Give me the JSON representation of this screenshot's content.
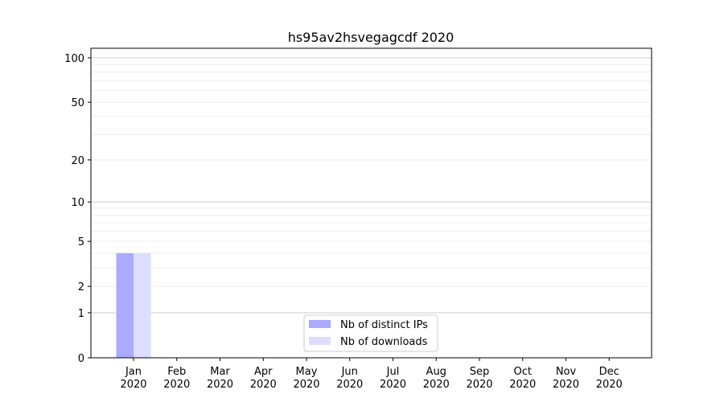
{
  "chart_data": {
    "type": "bar",
    "title": "hs95av2hsvegagcdf 2020",
    "xlabel": "",
    "ylabel": "",
    "categories": [
      "Jan\n2020",
      "Feb\n2020",
      "Mar\n2020",
      "Apr\n2020",
      "May\n2020",
      "Jun\n2020",
      "Jul\n2020",
      "Aug\n2020",
      "Sep\n2020",
      "Oct\n2020",
      "Nov\n2020",
      "Dec\n2020"
    ],
    "yscale": "log(y+1)",
    "yticks": [
      0,
      1,
      2,
      5,
      10,
      20,
      50,
      100
    ],
    "ylim": [
      0,
      116
    ],
    "grid": true,
    "legend_position": "bottom-center",
    "series": [
      {
        "name": "Nb of distinct IPs",
        "color": "#aaaaff",
        "values": [
          4,
          0,
          0,
          0,
          0,
          0,
          0,
          0,
          0,
          0,
          0,
          0
        ]
      },
      {
        "name": "Nb of downloads",
        "color": "#ddddff",
        "values": [
          4,
          0,
          0,
          0,
          0,
          0,
          0,
          0,
          0,
          0,
          0,
          0
        ]
      }
    ]
  }
}
